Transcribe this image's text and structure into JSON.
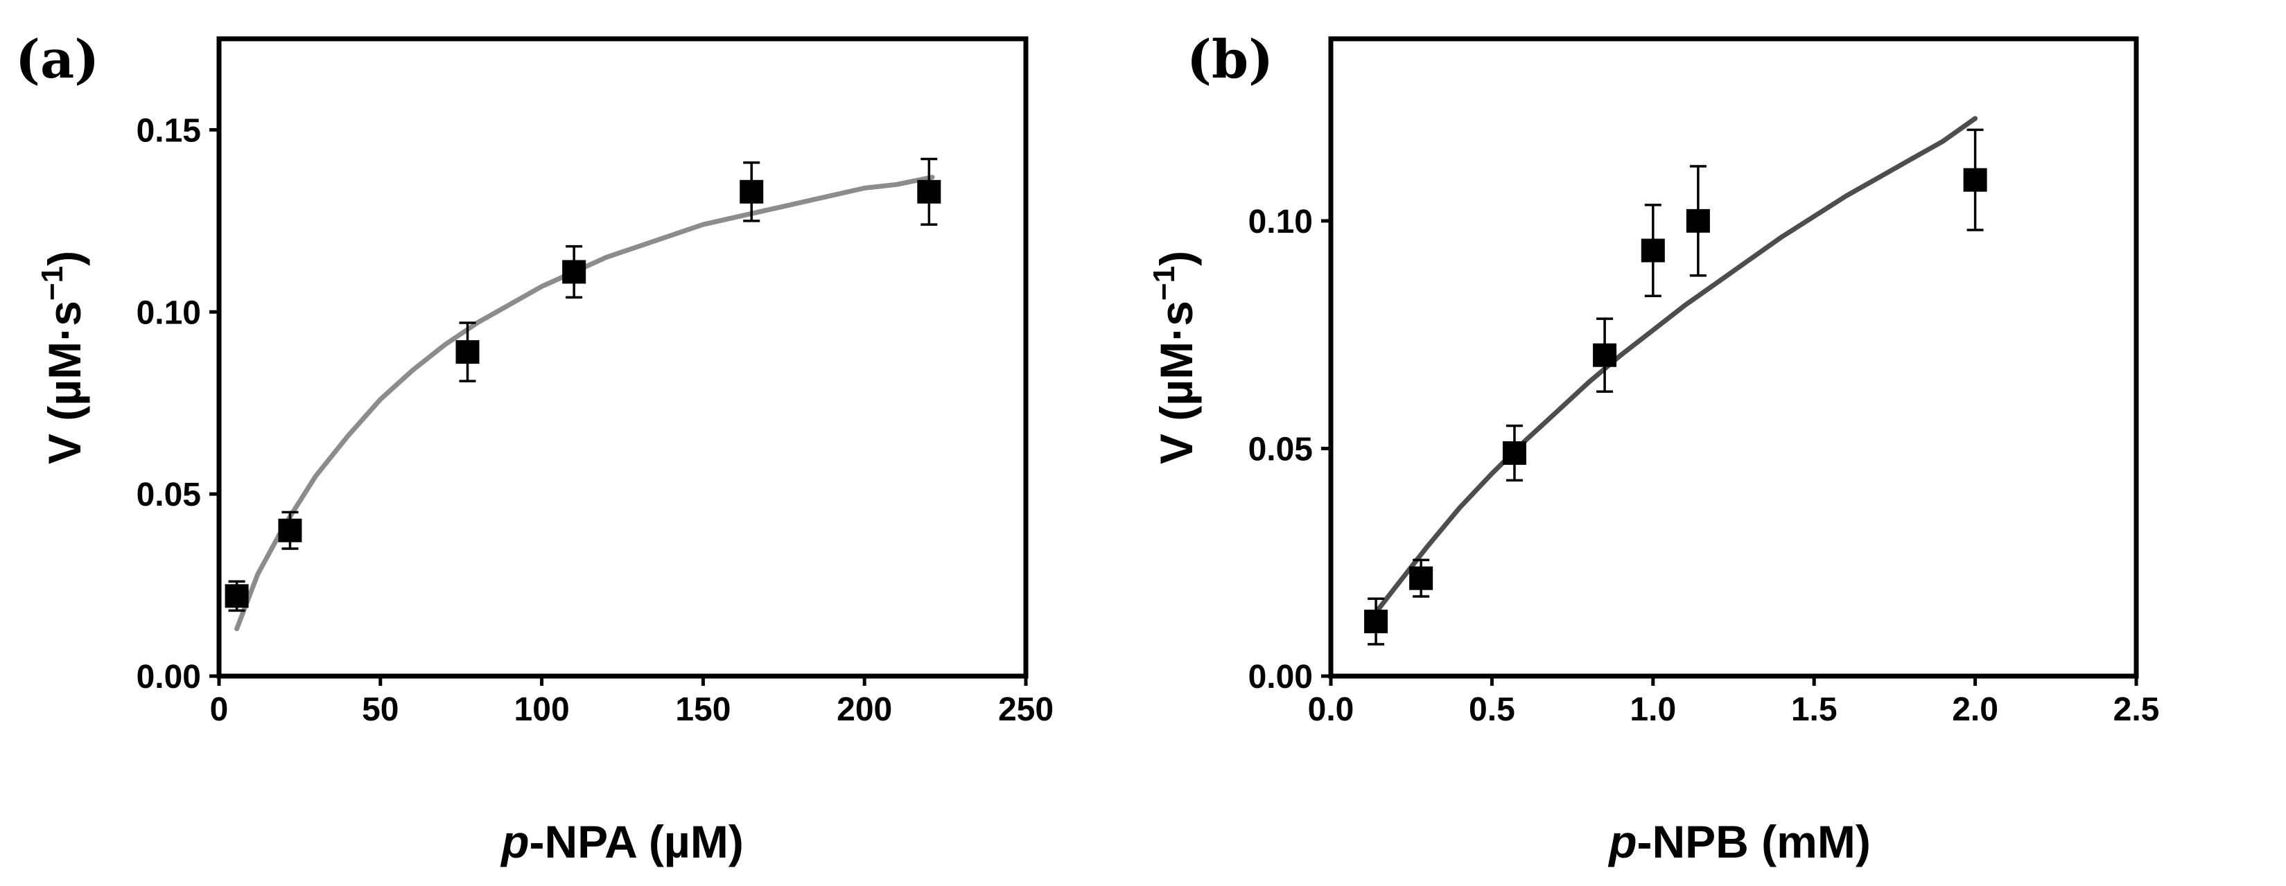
{
  "chart_data": [
    {
      "type": "scatter",
      "panel_label": "(a)",
      "title": "",
      "xlabel_italic": "p",
      "xlabel_rest": "-NPA (µM)",
      "ylabel_main": "V (µM·s",
      "ylabel_sup": "−1",
      "ylabel_close": ")",
      "xlim": [
        0,
        250
      ],
      "ylim": [
        0,
        0.175
      ],
      "xticks": [
        0,
        50,
        100,
        150,
        200,
        250
      ],
      "xtick_labels": [
        "0",
        "50",
        "100",
        "150",
        "200",
        "250"
      ],
      "yticks": [
        0,
        0.05,
        0.1,
        0.15
      ],
      "ytick_labels": [
        "0.00",
        "0.05",
        "0.10",
        "0.15"
      ],
      "grid": false,
      "legend": "none",
      "fit_color": "#8c8c8c",
      "series": [
        {
          "name": "data",
          "x": [
            5.5,
            22,
            77,
            110,
            165,
            220
          ],
          "y": [
            0.022,
            0.04,
            0.089,
            0.111,
            0.133,
            0.133
          ],
          "err": [
            0.004,
            0.005,
            0.008,
            0.007,
            0.008,
            0.009
          ]
        }
      ],
      "fit": {
        "name": "Michaelis-Menten fit",
        "x": [
          5.5,
          12,
          20,
          30,
          40,
          50,
          60,
          70,
          80,
          90,
          100,
          110,
          120,
          130,
          140,
          150,
          160,
          170,
          180,
          190,
          200,
          210,
          221
        ],
        "y": [
          0.013,
          0.028,
          0.041,
          0.055,
          0.066,
          0.076,
          0.084,
          0.091,
          0.097,
          0.102,
          0.107,
          0.111,
          0.115,
          0.118,
          0.121,
          0.124,
          0.126,
          0.128,
          0.13,
          0.132,
          0.134,
          0.135,
          0.137
        ]
      }
    },
    {
      "type": "scatter",
      "panel_label": "(b)",
      "title": "",
      "xlabel_italic": "p",
      "xlabel_rest": "-NPB (mM)",
      "ylabel_main": "V (µM·s",
      "ylabel_sup": "−1",
      "ylabel_close": ")",
      "xlim": [
        0,
        2.5
      ],
      "ylim": [
        0,
        0.14
      ],
      "xticks": [
        0,
        0.5,
        1.0,
        1.5,
        2.0,
        2.5
      ],
      "xtick_labels": [
        "0.0",
        "0.5",
        "1.0",
        "1.5",
        "2.0",
        "2.5"
      ],
      "yticks": [
        0,
        0.05,
        0.1
      ],
      "ytick_labels": [
        "0.00",
        "0.05",
        "0.10"
      ],
      "grid": false,
      "legend": "none",
      "fit_color": "#4d4d4d",
      "series": [
        {
          "name": "data",
          "x": [
            0.14,
            0.28,
            0.57,
            0.85,
            1.0,
            1.14,
            2.0
          ],
          "y": [
            0.012,
            0.0215,
            0.049,
            0.0705,
            0.0935,
            0.1,
            0.109
          ],
          "err": [
            0.005,
            0.004,
            0.006,
            0.008,
            0.01,
            0.012,
            0.011
          ]
        }
      ],
      "fit": {
        "name": "Michaelis-Menten fit",
        "x": [
          0.14,
          0.2,
          0.3,
          0.4,
          0.5,
          0.6,
          0.7,
          0.8,
          0.9,
          1.0,
          1.1,
          1.2,
          1.3,
          1.4,
          1.5,
          1.6,
          1.7,
          1.8,
          1.9,
          2.0
        ],
        "y": [
          0.014,
          0.0195,
          0.0285,
          0.037,
          0.0445,
          0.0515,
          0.058,
          0.0645,
          0.0705,
          0.076,
          0.0815,
          0.0865,
          0.0915,
          0.0965,
          0.101,
          0.1055,
          0.1095,
          0.1135,
          0.1175,
          0.1225
        ]
      }
    }
  ]
}
